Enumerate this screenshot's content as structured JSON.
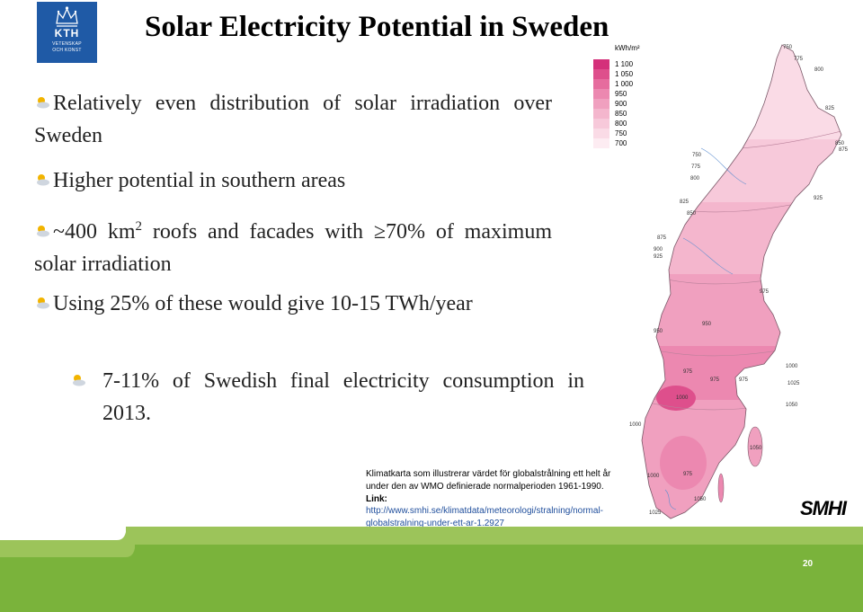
{
  "logo": {
    "name": "KTH",
    "line1": "VETENSKAP",
    "line2": "OCH KONST"
  },
  "slide": {
    "title": "Solar Electricity Potential in Sweden",
    "bullets": [
      {
        "text": "Relatively even distribution of solar irradiation over Sweden"
      },
      {
        "text": "Higher potential in southern areas"
      },
      {
        "pre": "~400 km",
        "sup": "2",
        "post": " roofs and facades with ≥70% of maximum solar irradiation"
      },
      {
        "text": "Using 25% of these would give 10-15 TWh/year"
      }
    ],
    "sub_bullets": [
      {
        "text": "7-11% of Swedish final electricity consumption in 2013."
      }
    ],
    "page_number": "20"
  },
  "map": {
    "legend_unit": "kWh/m²",
    "legend": [
      {
        "label": "1 100",
        "color": "#d4307a"
      },
      {
        "label": "1 050",
        "color": "#de4f8c"
      },
      {
        "label": "1 000",
        "color": "#e66c9e"
      },
      {
        "label": "950",
        "color": "#ec88b0"
      },
      {
        "label": "900",
        "color": "#f0a0bf"
      },
      {
        "label": "850",
        "color": "#f4b6cd"
      },
      {
        "label": "800",
        "color": "#f7c9da"
      },
      {
        "label": "750",
        "color": "#fadbe6"
      },
      {
        "label": "700",
        "color": "#fdecf2"
      }
    ],
    "contour_labels": [
      "750",
      "775",
      "800",
      "825",
      "850",
      "875",
      "750",
      "775",
      "800",
      "825",
      "850",
      "925",
      "875",
      "900",
      "925",
      "975",
      "950",
      "950",
      "975",
      "975",
      "975",
      "1000",
      "1025",
      "1050",
      "1000",
      "1050",
      "1000",
      "1050",
      "1025",
      "1000",
      "975"
    ],
    "source_logo": "SMHI"
  },
  "caption": {
    "text": "Klimatkarta som illustrerar värdet för globalstrålning ett helt år under den av WMO definierade normalperioden 1961-1990.",
    "link_label": "Link:",
    "link_url": "http://www.smhi.se/klimatdata/meteorologi/stralning/normal-globalstralning-under-ett-ar-1.2927"
  }
}
